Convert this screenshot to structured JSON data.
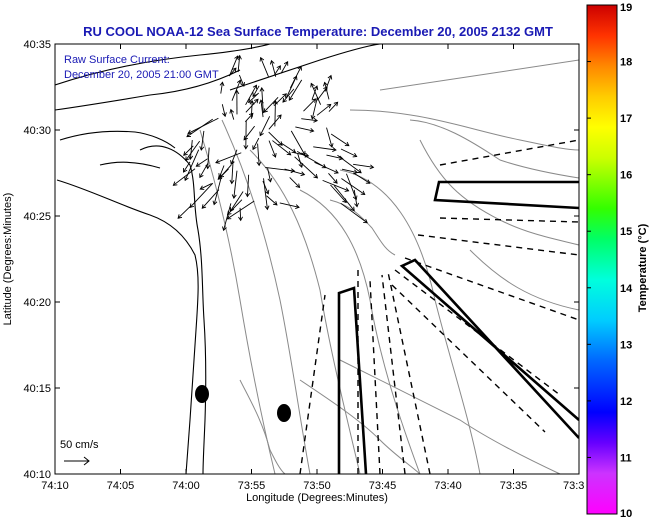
{
  "chart_data": {
    "type": "map",
    "title": "RU COOL   NOAA-12  Sea Surface Temperature:  December 20, 2005 2132 GMT",
    "inset_text": [
      "Raw Surface Current:",
      "December 20, 2005 21:00 GMT"
    ],
    "xlabel": "Longitude (Degrees:Minutes)",
    "ylabel": "Latitude (Degrees:Minutes)",
    "x_ticks": [
      "74:10",
      "74:05",
      "74:00",
      "73:55",
      "73:50",
      "73:45",
      "73:40",
      "73:35",
      "73:3"
    ],
    "y_ticks": [
      "40:35",
      "40:30",
      "40:25",
      "40:20",
      "40:15",
      "40:10"
    ],
    "xlim_minutes_west": [
      610,
      570
    ],
    "ylim_minutes_north": [
      2410,
      2435
    ],
    "scale_label": "50 cm/s",
    "colorbar": {
      "label": "Temperature (°C)",
      "range": [
        10,
        19
      ],
      "ticks": [
        "19",
        "18",
        "17",
        "16",
        "15",
        "14",
        "13",
        "12",
        "11",
        "10"
      ]
    },
    "colors": {
      "title": "#1a1ab4",
      "coast": "#000000",
      "contour": "#808080"
    },
    "markers": [
      {
        "lon_min": 598.8,
        "lat_min": 2414.7
      },
      {
        "lon_min": 592.2,
        "lat_min": 2413.5
      }
    ]
  }
}
